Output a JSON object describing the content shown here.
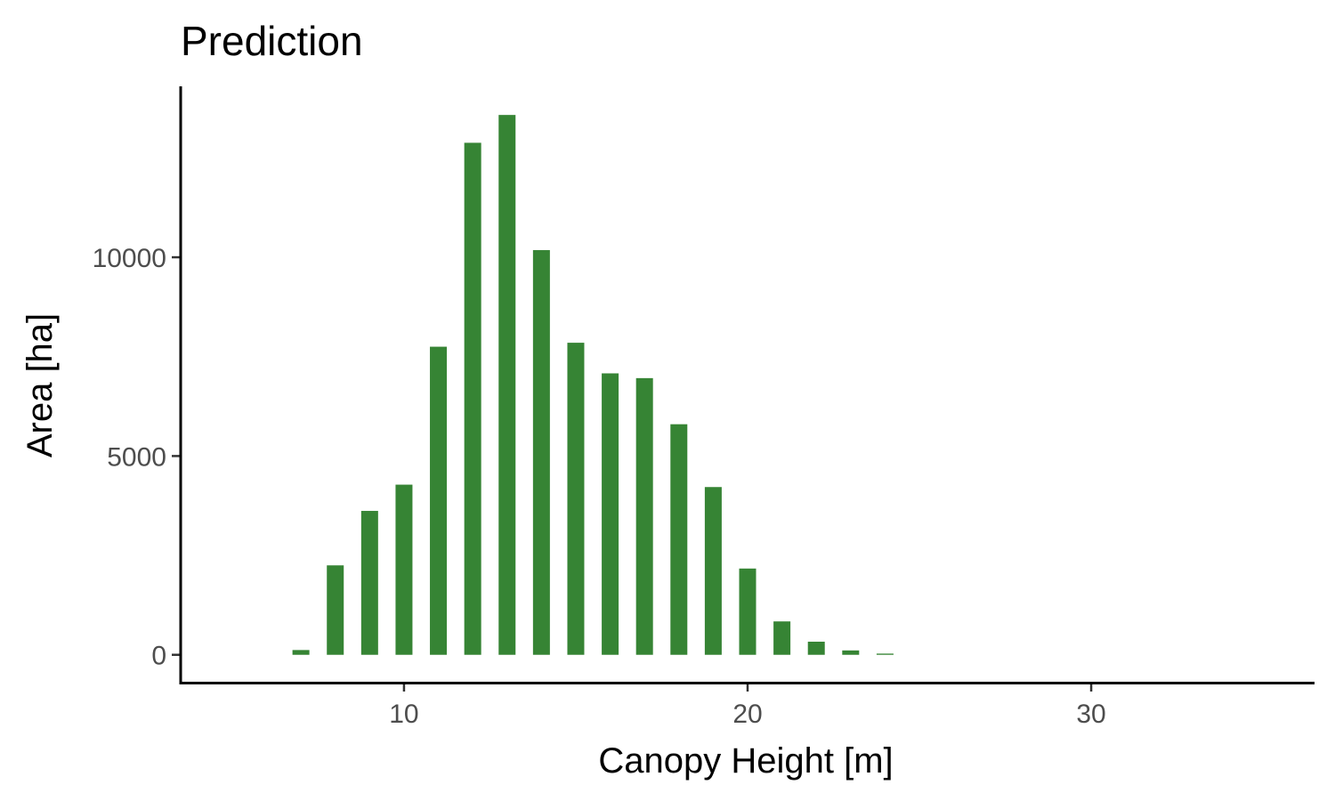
{
  "chart_data": {
    "type": "bar",
    "title": "Prediction",
    "xlabel": "Canopy Height [m]",
    "ylabel": "Area [ha]",
    "x": [
      7,
      8,
      9,
      10,
      11,
      12,
      13,
      14,
      15,
      16,
      17,
      18,
      19,
      20,
      21,
      22,
      23,
      24
    ],
    "values": [
      120,
      2250,
      3620,
      4280,
      7750,
      12880,
      13580,
      10180,
      7850,
      7080,
      6960,
      5800,
      4220,
      2170,
      840,
      330,
      110,
      30
    ],
    "xlim": [
      3.5,
      36.5
    ],
    "ylim": [
      -700,
      14300
    ],
    "xticks": [
      10,
      20,
      30
    ],
    "yticks": [
      0,
      5000,
      10000
    ],
    "xtick_labels": [
      "10",
      "20",
      "30"
    ],
    "ytick_labels": [
      "0",
      "5000",
      "10000"
    ],
    "bar_color": "#368434",
    "grid": false,
    "legend": "none"
  }
}
